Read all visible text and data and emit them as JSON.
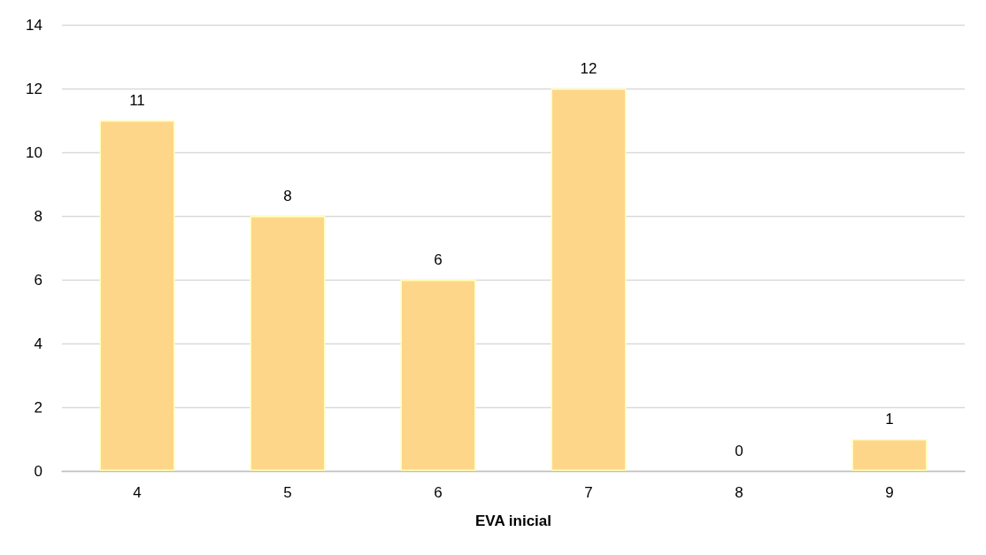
{
  "chart_data": {
    "type": "bar",
    "xlabel": "EVA inicial",
    "categories": [
      "4",
      "5",
      "6",
      "7",
      "8",
      "9"
    ],
    "values": [
      11,
      8,
      6,
      12,
      0,
      1
    ],
    "color": "#fed68a",
    "ylim": [
      0,
      14
    ],
    "yticks": [
      0,
      2,
      4,
      6,
      8,
      10,
      12,
      14
    ],
    "grid": "y",
    "data_labels": true
  }
}
